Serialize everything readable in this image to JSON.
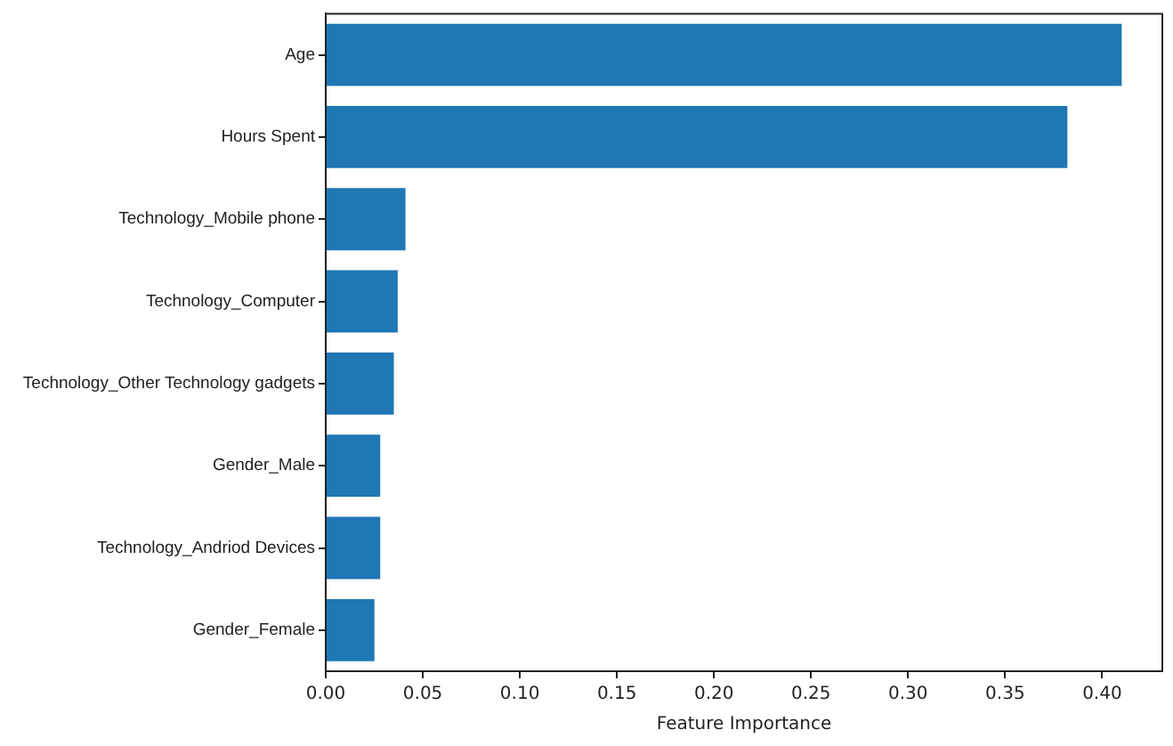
{
  "chart_data": {
    "type": "bar",
    "orientation": "horizontal",
    "xlabel": "Feature Importance",
    "categories": [
      "Age",
      "Hours Spent",
      "Technology_Mobile phone",
      "Technology_Computer",
      "Technology_Other Technology gadgets",
      "Gender_Male",
      "Technology_Andriod Devices",
      "Gender_Female"
    ],
    "values": [
      0.411,
      0.383,
      0.042,
      0.038,
      0.036,
      0.029,
      0.029,
      0.026
    ],
    "color": "#1f77b4",
    "xlim": [
      0,
      0.431
    ],
    "xticks": [
      {
        "value": 0,
        "label": "0.00"
      },
      {
        "value": 0.05,
        "label": "0.05"
      },
      {
        "value": 0.1,
        "label": "0.10"
      },
      {
        "value": 0.15,
        "label": "0.15"
      },
      {
        "value": 0.2,
        "label": "0.20"
      },
      {
        "value": 0.25,
        "label": "0.25"
      },
      {
        "value": 0.3,
        "label": "0.30"
      },
      {
        "value": 0.35,
        "label": "0.35"
      },
      {
        "value": 0.4,
        "label": "0.40"
      }
    ],
    "grid": false,
    "legend": false
  }
}
